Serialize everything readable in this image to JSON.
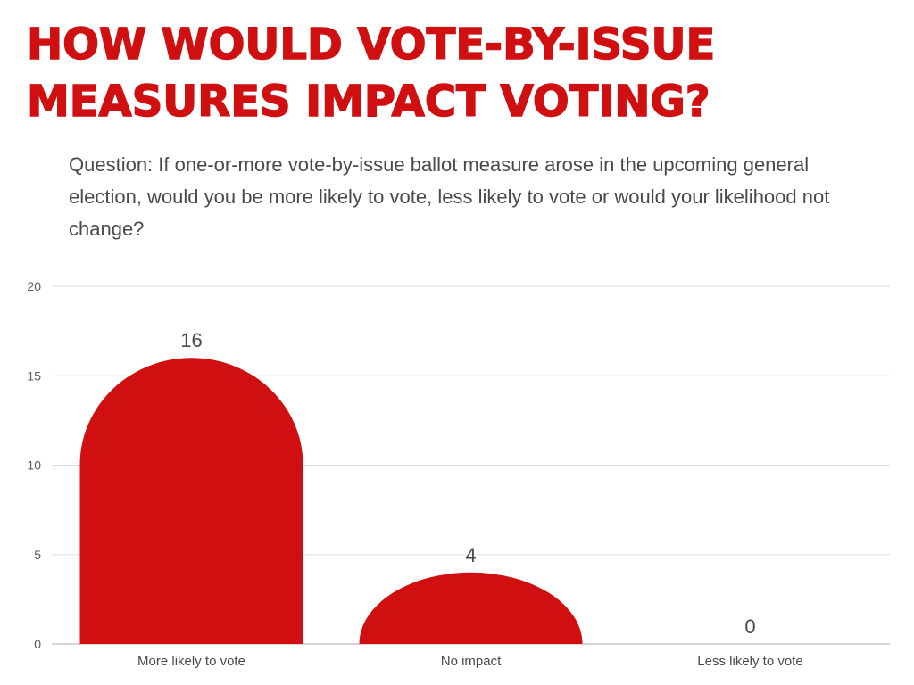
{
  "title_line1": "HOW WOULD VOTE-BY-ISSUE",
  "title_line2": "MEASURES IMPACT VOTING?",
  "question": "Question: If one-or-more vote-by-issue ballot measure arose in the upcoming general election, would you be more likely to vote, less likely to vote or would your likelihood not change?",
  "colors": {
    "accent": "#d01010",
    "grid": "#dddddd",
    "text": "#4a4a4a"
  },
  "chart_data": {
    "type": "bar",
    "title": "HOW WOULD VOTE-BY-ISSUE MEASURES IMPACT VOTING?",
    "categories": [
      "More likely to vote",
      "No impact",
      "Less likely to vote"
    ],
    "values": [
      16,
      4,
      0
    ],
    "ylim": [
      0,
      20
    ],
    "yticks": [
      0,
      5,
      10,
      15,
      20
    ],
    "xlabel": "",
    "ylabel": "",
    "grid": true,
    "legend": "none"
  }
}
